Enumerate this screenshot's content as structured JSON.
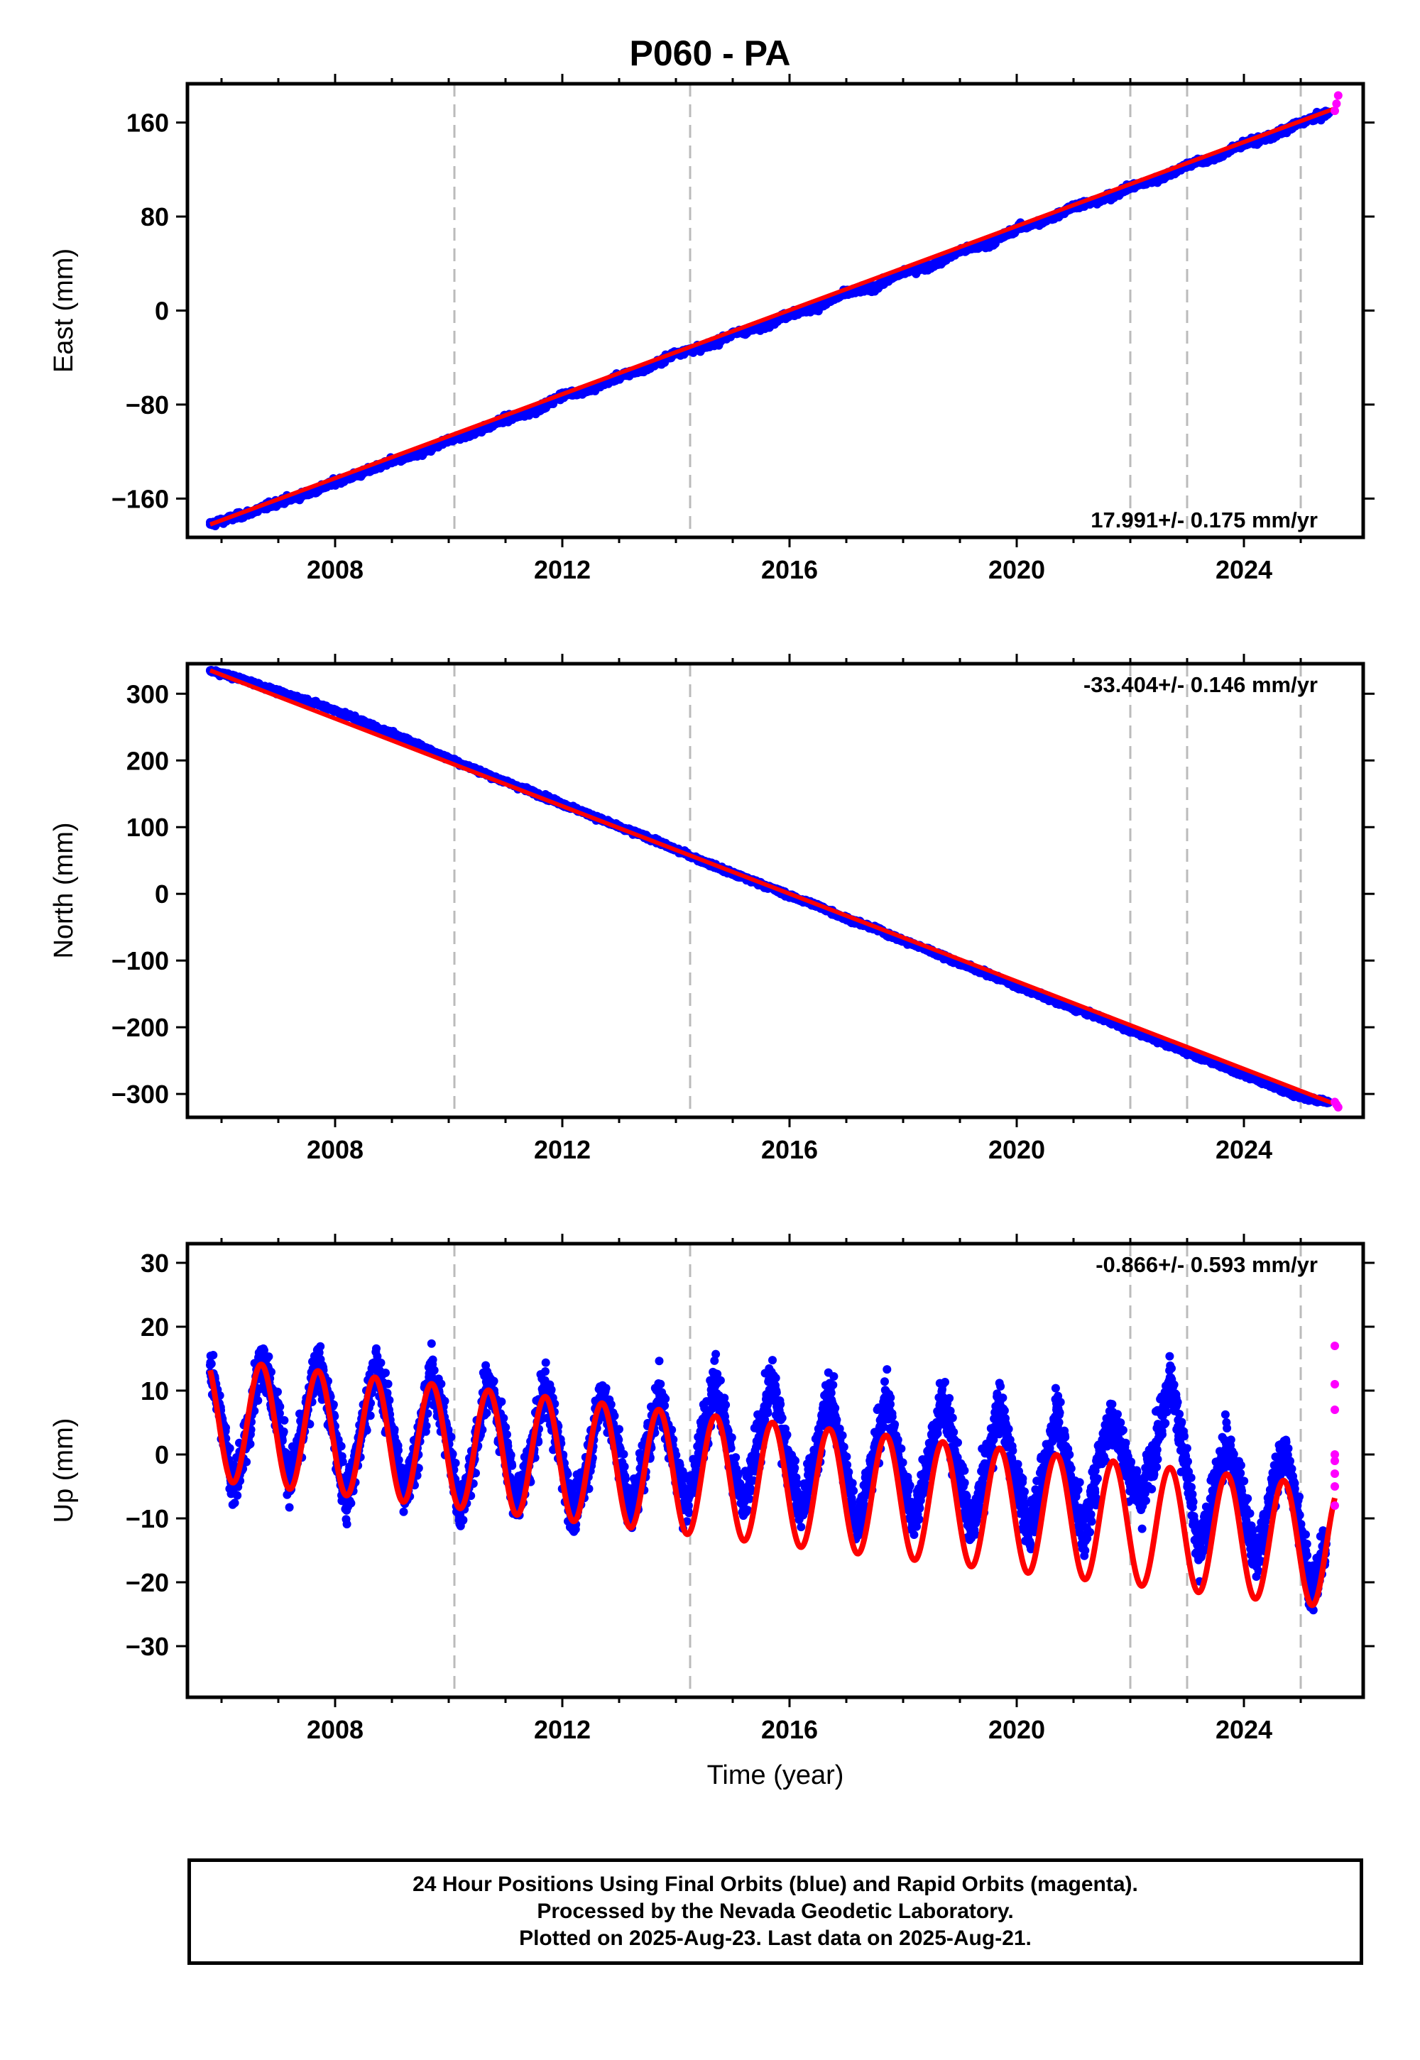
{
  "title": "P060 - PA",
  "footer": {
    "line1": "24 Hour Positions Using Final Orbits (blue) and Rapid Orbits (magenta).",
    "line2": "Processed by the Nevada Geodetic Laboratory.",
    "line3": "Plotted on 2025-Aug-23. Last data on 2025-Aug-21."
  },
  "colors": {
    "final_orbits": "#0000ff",
    "rapid_orbits": "#ff00ff",
    "model": "#ff0000",
    "event_lines": "#bbbbbb"
  },
  "chart_data": [
    {
      "type": "scatter",
      "ylabel": "East (mm)",
      "xlabel": "",
      "xlim": [
        2005.4,
        2026.1
      ],
      "ylim": [
        -193,
        193
      ],
      "xticks": [
        2008,
        2012,
        2016,
        2020,
        2024
      ],
      "yticks": [
        -160,
        -80,
        0,
        80,
        160
      ],
      "ytick_labels": [
        "−160",
        "−80",
        "0",
        "80",
        "160"
      ],
      "event_lines": [
        2010.1,
        2014.25,
        2022.0,
        2023.0,
        2025.0
      ],
      "rate": "17.991+/- 0.175 mm/yr",
      "rate_position": "bottom-right",
      "series": [
        {
          "marker": "final",
          "x": [
            2005.8,
            2006.5,
            2007.0,
            2007.5,
            2008.0,
            2008.5,
            2009.0,
            2009.5,
            2010.0,
            2010.5,
            2011.0,
            2011.5,
            2012.0,
            2012.5,
            2013.0,
            2013.5,
            2014.0,
            2014.5,
            2015.0,
            2015.5,
            2016.0,
            2016.5,
            2017.0,
            2017.5,
            2018.0,
            2018.5,
            2019.0,
            2019.5,
            2020.0,
            2020.5,
            2021.0,
            2021.5,
            2022.0,
            2022.5,
            2023.0,
            2023.5,
            2024.0,
            2024.5,
            2025.0,
            2025.5
          ],
          "y": [
            -182,
            -172,
            -163,
            -156,
            -146,
            -138,
            -128,
            -122,
            -110,
            -103,
            -92,
            -86,
            -72,
            -67,
            -56,
            -49,
            -36,
            -31,
            -20,
            -14,
            -3,
            3,
            15,
            20,
            33,
            38,
            51,
            56,
            70,
            76,
            89,
            94,
            105,
            112,
            124,
            130,
            142,
            148,
            160,
            168
          ]
        },
        {
          "marker": "rapid",
          "x": [
            2025.6,
            2025.63,
            2025.66
          ],
          "y": [
            170,
            176,
            183
          ]
        }
      ],
      "model": {
        "x0": 2005.8,
        "x1": 2025.6,
        "y0": -182,
        "y1": 172
      }
    },
    {
      "type": "scatter",
      "ylabel": "North (mm)",
      "xlabel": "",
      "xlim": [
        2005.4,
        2026.1
      ],
      "ylim": [
        -335,
        345
      ],
      "xticks": [
        2008,
        2012,
        2016,
        2020,
        2024
      ],
      "yticks": [
        -300,
        -200,
        -100,
        0,
        100,
        200,
        300
      ],
      "ytick_labels": [
        "−300",
        "−200",
        "−100",
        "0",
        "100",
        "200",
        "300"
      ],
      "event_lines": [
        2010.1,
        2014.25,
        2022.0,
        2023.0,
        2025.0
      ],
      "rate": "-33.404+/- 0.146 mm/yr",
      "rate_position": "top-right",
      "series": [
        {
          "marker": "final",
          "x": [
            2005.8,
            2006.5,
            2007.0,
            2007.5,
            2008.0,
            2008.5,
            2009.0,
            2009.5,
            2010.0,
            2010.5,
            2011.0,
            2011.5,
            2012.0,
            2012.5,
            2013.0,
            2013.5,
            2014.0,
            2014.5,
            2015.0,
            2015.5,
            2016.0,
            2016.5,
            2017.0,
            2017.5,
            2018.0,
            2018.5,
            2019.0,
            2019.5,
            2020.0,
            2020.5,
            2021.0,
            2021.5,
            2022.0,
            2022.5,
            2023.0,
            2023.5,
            2024.0,
            2024.5,
            2025.0,
            2025.5
          ],
          "y": [
            335,
            318,
            302,
            290,
            275,
            258,
            240,
            222,
            203,
            185,
            168,
            152,
            135,
            118,
            100,
            85,
            66,
            48,
            30,
            15,
            -3,
            -18,
            -37,
            -52,
            -70,
            -86,
            -104,
            -120,
            -138,
            -155,
            -172,
            -186,
            -205,
            -220,
            -238,
            -254,
            -272,
            -288,
            -305,
            -312
          ]
        },
        {
          "marker": "rapid",
          "x": [
            2025.6,
            2025.63,
            2025.66
          ],
          "y": [
            -312,
            -316,
            -320
          ]
        }
      ],
      "model": {
        "x0": 2005.8,
        "x1": 2025.6,
        "y0": 335,
        "y1": -315
      }
    },
    {
      "type": "scatter",
      "ylabel": "Up (mm)",
      "xlabel": "Time (year)",
      "xlim": [
        2005.4,
        2026.1
      ],
      "ylim": [
        -38,
        33
      ],
      "xticks": [
        2008,
        2012,
        2016,
        2020,
        2024
      ],
      "yticks": [
        -30,
        -20,
        -10,
        0,
        10,
        20,
        30
      ],
      "ytick_labels": [
        "−30",
        "−20",
        "−10",
        "0",
        "10",
        "20",
        "30"
      ],
      "event_lines": [
        2010.1,
        2014.25,
        2022.0,
        2023.0,
        2025.0
      ],
      "rate": "-0.866+/- 0.593 mm/yr",
      "rate_position": "top-right",
      "series": [
        {
          "marker": "final",
          "x": [
            2005.8,
            2006.0,
            2006.2,
            2006.45,
            2006.7,
            2006.95,
            2007.2,
            2007.45,
            2007.7,
            2007.95,
            2008.2,
            2008.45,
            2008.7,
            2008.95,
            2009.2,
            2009.45,
            2009.7,
            2009.95,
            2010.2,
            2010.45,
            2010.7,
            2010.95,
            2011.2,
            2011.45,
            2011.7,
            2011.95,
            2012.2,
            2012.45,
            2012.7,
            2012.95,
            2013.2,
            2013.45,
            2013.7,
            2013.95,
            2014.2,
            2014.45,
            2014.7,
            2014.95,
            2015.2,
            2015.45,
            2015.7,
            2015.95,
            2016.2,
            2016.45,
            2016.7,
            2016.95,
            2017.2,
            2017.45,
            2017.7,
            2017.95,
            2018.2,
            2018.45,
            2018.7,
            2018.95,
            2019.2,
            2019.45,
            2019.7,
            2019.95,
            2020.2,
            2020.45,
            2020.7,
            2020.95,
            2021.2,
            2021.45,
            2021.7,
            2021.95,
            2022.2,
            2022.45,
            2022.7,
            2022.95,
            2023.2,
            2023.45,
            2023.7,
            2023.95,
            2024.2,
            2024.45,
            2024.7,
            2024.95,
            2025.2,
            2025.45
          ],
          "y": [
            14,
            6,
            -5,
            2,
            16,
            8,
            -4,
            4,
            15,
            5,
            -7,
            3,
            14,
            6,
            -6,
            1,
            13,
            4,
            -9,
            0,
            12,
            3,
            -8,
            0,
            11,
            1,
            -10,
            -1,
            10,
            2,
            -9,
            -1,
            10,
            0,
            -8,
            2,
            12,
            1,
            -9,
            2,
            12,
            0,
            -9,
            -1,
            10,
            -1,
            -11,
            -2,
            9,
            -2,
            -10,
            -1,
            9,
            -2,
            -12,
            -3,
            8,
            -3,
            -12,
            -4,
            7,
            -4,
            -13,
            0,
            6,
            -2,
            -7,
            2,
            12,
            0,
            -16,
            -7,
            2,
            -6,
            -17,
            -8,
            1,
            -9,
            -22,
            -14
          ]
        },
        {
          "marker": "rapid",
          "x": [
            2025.6,
            2025.6,
            2025.6,
            2025.6,
            2025.6,
            2025.6,
            2025.6,
            2025.6
          ],
          "y": [
            17,
            11,
            7,
            0,
            -1,
            -3,
            -5,
            -8
          ]
        }
      ],
      "model": {
        "mean_start": 5.5,
        "mean_end": -14.5,
        "amplitude": 9.5,
        "peak_phase": 0.7
      }
    }
  ]
}
